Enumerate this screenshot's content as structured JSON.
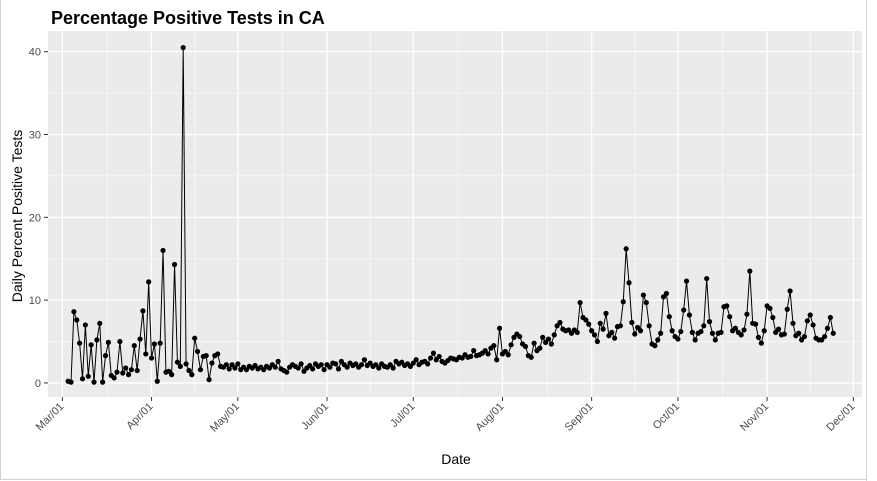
{
  "chart_data": {
    "type": "line",
    "title": "Percentage Positive Tests in CA",
    "xlabel": "Date",
    "ylabel": "Daily Percent Positive Tests",
    "x_tick_labels": [
      "Mar/01",
      "Apr/01",
      "May/01",
      "Jun/01",
      "Jul/01",
      "Aug/01",
      "Sep/01",
      "Oct/01",
      "Nov/01",
      "Dec/01"
    ],
    "x_tick_dates": [
      "2020-03-01",
      "2020-04-01",
      "2020-05-01",
      "2020-06-01",
      "2020-07-01",
      "2020-08-01",
      "2020-09-01",
      "2020-10-01",
      "2020-11-01",
      "2020-12-01"
    ],
    "xlim": [
      "2020-02-25",
      "2020-12-04"
    ],
    "y_ticks": [
      0,
      10,
      20,
      30,
      40
    ],
    "ylim": [
      -1.7,
      42.5
    ],
    "grid": true,
    "background": "#ebebeb",
    "point_color": "#000000",
    "series": [
      {
        "points": [
          [
            "2020-03-03",
            0.2
          ],
          [
            "2020-03-04",
            0.1
          ],
          [
            "2020-03-05",
            8.6
          ],
          [
            "2020-03-06",
            7.6
          ],
          [
            "2020-03-07",
            4.8
          ],
          [
            "2020-03-08",
            0.5
          ],
          [
            "2020-03-09",
            7.0
          ],
          [
            "2020-03-10",
            0.8
          ],
          [
            "2020-03-11",
            4.6
          ],
          [
            "2020-03-12",
            0.1
          ],
          [
            "2020-03-13",
            5.2
          ],
          [
            "2020-03-14",
            7.2
          ],
          [
            "2020-03-15",
            0.1
          ],
          [
            "2020-03-16",
            3.3
          ],
          [
            "2020-03-17",
            4.9
          ],
          [
            "2020-03-18",
            0.9
          ],
          [
            "2020-03-19",
            0.6
          ],
          [
            "2020-03-20",
            1.3
          ],
          [
            "2020-03-21",
            5.0
          ],
          [
            "2020-03-22",
            1.2
          ],
          [
            "2020-03-23",
            1.8
          ],
          [
            "2020-03-24",
            1.0
          ],
          [
            "2020-03-25",
            1.6
          ],
          [
            "2020-03-26",
            4.5
          ],
          [
            "2020-03-27",
            1.5
          ],
          [
            "2020-03-28",
            5.3
          ],
          [
            "2020-03-29",
            8.7
          ],
          [
            "2020-03-30",
            3.5
          ],
          [
            "2020-03-31",
            12.2
          ],
          [
            "2020-04-01",
            3.0
          ],
          [
            "2020-04-02",
            4.7
          ],
          [
            "2020-04-03",
            0.2
          ],
          [
            "2020-04-04",
            4.8
          ],
          [
            "2020-04-05",
            16.0
          ],
          [
            "2020-04-06",
            1.3
          ],
          [
            "2020-04-07",
            1.4
          ],
          [
            "2020-04-08",
            1.0
          ],
          [
            "2020-04-09",
            14.3
          ],
          [
            "2020-04-10",
            2.5
          ],
          [
            "2020-04-11",
            2.0
          ],
          [
            "2020-04-12",
            40.5
          ],
          [
            "2020-04-13",
            2.3
          ],
          [
            "2020-04-14",
            1.5
          ],
          [
            "2020-04-15",
            1.0
          ],
          [
            "2020-04-16",
            5.4
          ],
          [
            "2020-04-17",
            3.8
          ],
          [
            "2020-04-18",
            1.6
          ],
          [
            "2020-04-19",
            3.2
          ],
          [
            "2020-04-20",
            3.3
          ],
          [
            "2020-04-21",
            0.4
          ],
          [
            "2020-04-22",
            2.4
          ],
          [
            "2020-04-23",
            3.3
          ],
          [
            "2020-04-24",
            3.5
          ],
          [
            "2020-04-25",
            2.0
          ],
          [
            "2020-04-26",
            1.9
          ],
          [
            "2020-04-27",
            2.2
          ],
          [
            "2020-04-28",
            1.7
          ],
          [
            "2020-04-29",
            2.2
          ],
          [
            "2020-04-30",
            1.8
          ],
          [
            "2020-05-01",
            2.3
          ],
          [
            "2020-05-02",
            1.6
          ],
          [
            "2020-05-03",
            1.9
          ],
          [
            "2020-05-04",
            1.6
          ],
          [
            "2020-05-05",
            2.0
          ],
          [
            "2020-05-06",
            1.8
          ],
          [
            "2020-05-07",
            2.1
          ],
          [
            "2020-05-08",
            1.7
          ],
          [
            "2020-05-09",
            1.9
          ],
          [
            "2020-05-10",
            1.6
          ],
          [
            "2020-05-11",
            2.0
          ],
          [
            "2020-05-12",
            1.8
          ],
          [
            "2020-05-13",
            2.2
          ],
          [
            "2020-05-14",
            1.9
          ],
          [
            "2020-05-15",
            2.6
          ],
          [
            "2020-05-16",
            1.7
          ],
          [
            "2020-05-17",
            1.5
          ],
          [
            "2020-05-18",
            1.3
          ],
          [
            "2020-05-19",
            1.9
          ],
          [
            "2020-05-20",
            2.2
          ],
          [
            "2020-05-21",
            2.0
          ],
          [
            "2020-05-22",
            1.8
          ],
          [
            "2020-05-23",
            2.3
          ],
          [
            "2020-05-24",
            1.4
          ],
          [
            "2020-05-25",
            1.8
          ],
          [
            "2020-05-26",
            2.1
          ],
          [
            "2020-05-27",
            1.7
          ],
          [
            "2020-05-28",
            2.3
          ],
          [
            "2020-05-29",
            2.0
          ],
          [
            "2020-05-30",
            2.2
          ],
          [
            "2020-05-31",
            1.6
          ],
          [
            "2020-06-01",
            2.2
          ],
          [
            "2020-06-02",
            1.9
          ],
          [
            "2020-06-03",
            2.4
          ],
          [
            "2020-06-04",
            2.3
          ],
          [
            "2020-06-05",
            1.7
          ],
          [
            "2020-06-06",
            2.6
          ],
          [
            "2020-06-07",
            2.2
          ],
          [
            "2020-06-08",
            1.9
          ],
          [
            "2020-06-09",
            2.4
          ],
          [
            "2020-06-10",
            2.1
          ],
          [
            "2020-06-11",
            2.3
          ],
          [
            "2020-06-12",
            1.9
          ],
          [
            "2020-06-13",
            2.2
          ],
          [
            "2020-06-14",
            2.8
          ],
          [
            "2020-06-15",
            2.1
          ],
          [
            "2020-06-16",
            2.4
          ],
          [
            "2020-06-17",
            2.0
          ],
          [
            "2020-06-18",
            2.2
          ],
          [
            "2020-06-19",
            1.8
          ],
          [
            "2020-06-20",
            2.3
          ],
          [
            "2020-06-21",
            2.0
          ],
          [
            "2020-06-22",
            1.9
          ],
          [
            "2020-06-23",
            2.2
          ],
          [
            "2020-06-24",
            1.8
          ],
          [
            "2020-06-25",
            2.6
          ],
          [
            "2020-06-26",
            2.3
          ],
          [
            "2020-06-27",
            2.5
          ],
          [
            "2020-06-28",
            2.1
          ],
          [
            "2020-06-29",
            2.3
          ],
          [
            "2020-06-30",
            2.0
          ],
          [
            "2020-07-01",
            2.4
          ],
          [
            "2020-07-02",
            2.8
          ],
          [
            "2020-07-03",
            2.2
          ],
          [
            "2020-07-04",
            2.5
          ],
          [
            "2020-07-05",
            2.6
          ],
          [
            "2020-07-06",
            2.3
          ],
          [
            "2020-07-07",
            3.0
          ],
          [
            "2020-07-08",
            3.6
          ],
          [
            "2020-07-09",
            2.8
          ],
          [
            "2020-07-10",
            3.2
          ],
          [
            "2020-07-11",
            2.6
          ],
          [
            "2020-07-12",
            2.4
          ],
          [
            "2020-07-13",
            2.7
          ],
          [
            "2020-07-14",
            3.0
          ],
          [
            "2020-07-15",
            2.9
          ],
          [
            "2020-07-16",
            2.8
          ],
          [
            "2020-07-17",
            3.1
          ],
          [
            "2020-07-18",
            3.0
          ],
          [
            "2020-07-19",
            3.4
          ],
          [
            "2020-07-20",
            3.1
          ],
          [
            "2020-07-21",
            3.2
          ],
          [
            "2020-07-22",
            3.9
          ],
          [
            "2020-07-23",
            3.3
          ],
          [
            "2020-07-24",
            3.4
          ],
          [
            "2020-07-25",
            3.6
          ],
          [
            "2020-07-26",
            3.9
          ],
          [
            "2020-07-27",
            3.5
          ],
          [
            "2020-07-28",
            4.2
          ],
          [
            "2020-07-29",
            4.5
          ],
          [
            "2020-07-30",
            2.8
          ],
          [
            "2020-07-31",
            6.6
          ],
          [
            "2020-08-01",
            3.5
          ],
          [
            "2020-08-02",
            3.8
          ],
          [
            "2020-08-03",
            3.4
          ],
          [
            "2020-08-04",
            4.6
          ],
          [
            "2020-08-05",
            5.5
          ],
          [
            "2020-08-06",
            5.9
          ],
          [
            "2020-08-07",
            5.6
          ],
          [
            "2020-08-08",
            4.7
          ],
          [
            "2020-08-09",
            4.4
          ],
          [
            "2020-08-10",
            3.3
          ],
          [
            "2020-08-11",
            3.1
          ],
          [
            "2020-08-12",
            4.8
          ],
          [
            "2020-08-13",
            3.9
          ],
          [
            "2020-08-14",
            4.2
          ],
          [
            "2020-08-15",
            5.5
          ],
          [
            "2020-08-16",
            4.9
          ],
          [
            "2020-08-17",
            5.3
          ],
          [
            "2020-08-18",
            4.7
          ],
          [
            "2020-08-19",
            5.8
          ],
          [
            "2020-08-20",
            6.9
          ],
          [
            "2020-08-21",
            7.3
          ],
          [
            "2020-08-22",
            6.5
          ],
          [
            "2020-08-23",
            6.3
          ],
          [
            "2020-08-24",
            6.4
          ],
          [
            "2020-08-25",
            6.0
          ],
          [
            "2020-08-26",
            6.4
          ],
          [
            "2020-08-27",
            6.1
          ],
          [
            "2020-08-28",
            9.7
          ],
          [
            "2020-08-29",
            7.9
          ],
          [
            "2020-08-30",
            7.6
          ],
          [
            "2020-08-31",
            7.1
          ],
          [
            "2020-09-01",
            6.3
          ],
          [
            "2020-09-02",
            5.8
          ],
          [
            "2020-09-03",
            5.0
          ],
          [
            "2020-09-04",
            7.2
          ],
          [
            "2020-09-05",
            6.5
          ],
          [
            "2020-09-06",
            8.4
          ],
          [
            "2020-09-07",
            5.7
          ],
          [
            "2020-09-08",
            6.1
          ],
          [
            "2020-09-09",
            5.4
          ],
          [
            "2020-09-10",
            6.8
          ],
          [
            "2020-09-11",
            6.9
          ],
          [
            "2020-09-12",
            9.8
          ],
          [
            "2020-09-13",
            16.2
          ],
          [
            "2020-09-14",
            12.1
          ],
          [
            "2020-09-15",
            7.3
          ],
          [
            "2020-09-16",
            5.9
          ],
          [
            "2020-09-17",
            6.7
          ],
          [
            "2020-09-18",
            6.3
          ],
          [
            "2020-09-19",
            10.6
          ],
          [
            "2020-09-20",
            9.7
          ],
          [
            "2020-09-21",
            6.9
          ],
          [
            "2020-09-22",
            4.7
          ],
          [
            "2020-09-23",
            4.5
          ],
          [
            "2020-09-24",
            5.2
          ],
          [
            "2020-09-25",
            6.0
          ],
          [
            "2020-09-26",
            10.4
          ],
          [
            "2020-09-27",
            10.8
          ],
          [
            "2020-09-28",
            8.0
          ],
          [
            "2020-09-29",
            6.3
          ],
          [
            "2020-09-30",
            5.6
          ],
          [
            "2020-10-01",
            5.3
          ],
          [
            "2020-10-02",
            6.2
          ],
          [
            "2020-10-03",
            8.8
          ],
          [
            "2020-10-04",
            12.3
          ],
          [
            "2020-10-05",
            8.2
          ],
          [
            "2020-10-06",
            6.1
          ],
          [
            "2020-10-07",
            5.2
          ],
          [
            "2020-10-08",
            6.0
          ],
          [
            "2020-10-09",
            6.2
          ],
          [
            "2020-10-10",
            6.9
          ],
          [
            "2020-10-11",
            12.6
          ],
          [
            "2020-10-12",
            7.4
          ],
          [
            "2020-10-13",
            6.0
          ],
          [
            "2020-10-14",
            5.2
          ],
          [
            "2020-10-15",
            6.0
          ],
          [
            "2020-10-16",
            6.1
          ],
          [
            "2020-10-17",
            9.2
          ],
          [
            "2020-10-18",
            9.3
          ],
          [
            "2020-10-19",
            8.0
          ],
          [
            "2020-10-20",
            6.3
          ],
          [
            "2020-10-21",
            6.6
          ],
          [
            "2020-10-22",
            6.1
          ],
          [
            "2020-10-23",
            5.8
          ],
          [
            "2020-10-24",
            6.4
          ],
          [
            "2020-10-25",
            8.3
          ],
          [
            "2020-10-26",
            13.5
          ],
          [
            "2020-10-27",
            7.2
          ],
          [
            "2020-10-28",
            7.1
          ],
          [
            "2020-10-29",
            5.5
          ],
          [
            "2020-10-30",
            4.8
          ],
          [
            "2020-10-31",
            6.3
          ],
          [
            "2020-11-01",
            9.3
          ],
          [
            "2020-11-02",
            9.0
          ],
          [
            "2020-11-03",
            7.9
          ],
          [
            "2020-11-04",
            6.1
          ],
          [
            "2020-11-05",
            6.5
          ],
          [
            "2020-11-06",
            5.8
          ],
          [
            "2020-11-07",
            5.9
          ],
          [
            "2020-11-08",
            8.9
          ],
          [
            "2020-11-09",
            11.1
          ],
          [
            "2020-11-10",
            7.2
          ],
          [
            "2020-11-11",
            5.7
          ],
          [
            "2020-11-12",
            6.0
          ],
          [
            "2020-11-13",
            5.2
          ],
          [
            "2020-11-14",
            5.6
          ],
          [
            "2020-11-15",
            7.5
          ],
          [
            "2020-11-16",
            8.2
          ],
          [
            "2020-11-17",
            7.0
          ],
          [
            "2020-11-18",
            5.4
          ],
          [
            "2020-11-19",
            5.2
          ],
          [
            "2020-11-20",
            5.2
          ],
          [
            "2020-11-21",
            5.6
          ],
          [
            "2020-11-22",
            6.6
          ],
          [
            "2020-11-23",
            7.9
          ],
          [
            "2020-11-24",
            6.0
          ]
        ]
      }
    ]
  }
}
